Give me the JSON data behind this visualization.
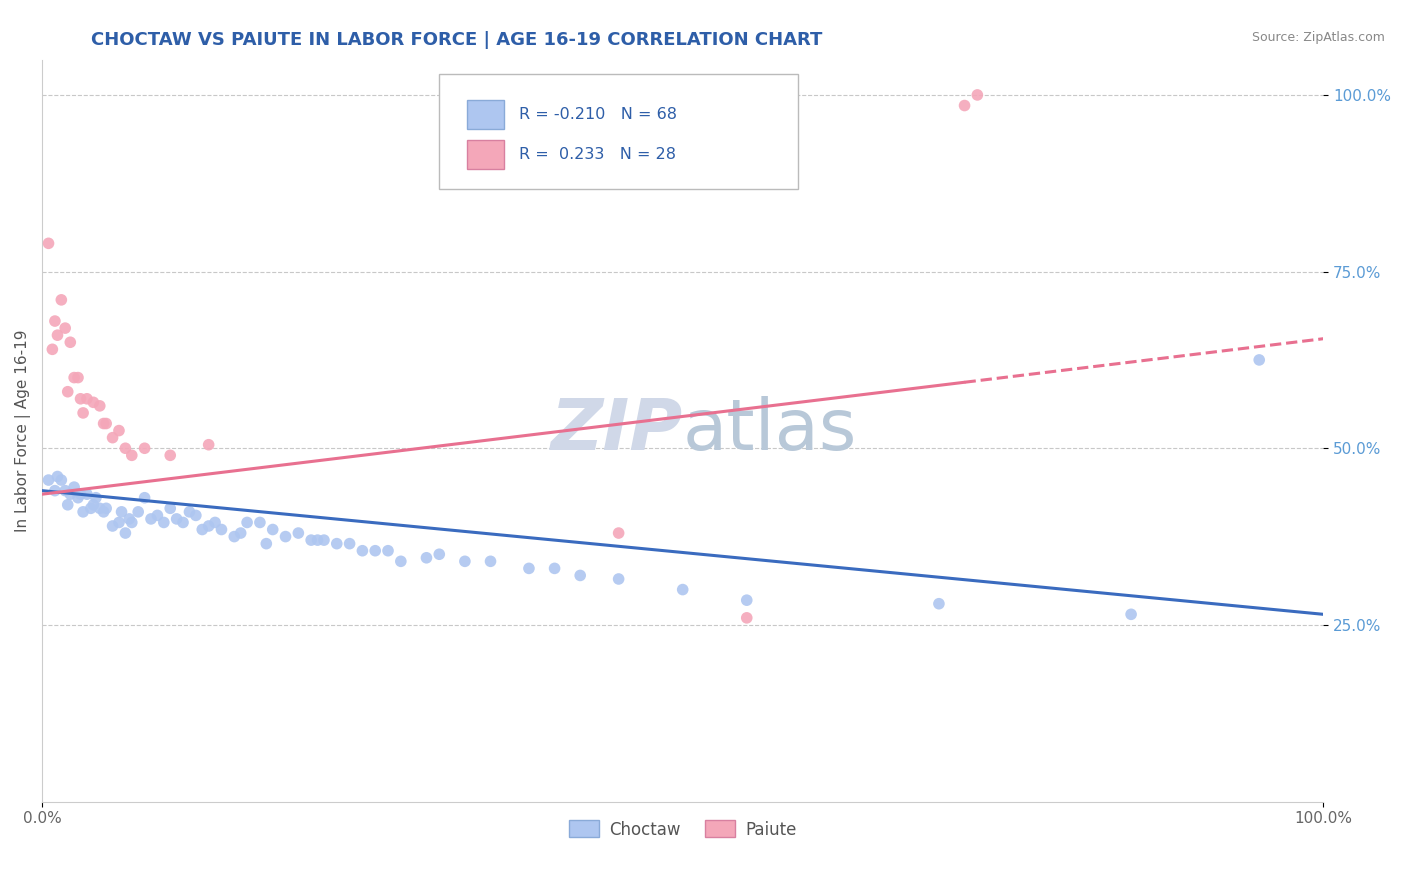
{
  "title": "CHOCTAW VS PAIUTE IN LABOR FORCE | AGE 16-19 CORRELATION CHART",
  "source_text": "Source: ZipAtlas.com",
  "ylabel": "In Labor Force | Age 16-19",
  "choctaw_R": -0.21,
  "choctaw_N": 68,
  "paiute_R": 0.233,
  "paiute_N": 28,
  "choctaw_color": "#aec6f0",
  "paiute_color": "#f4a7b9",
  "choctaw_line_color": "#3a6bbf",
  "paiute_line_color": "#e87090",
  "background_color": "#ffffff",
  "grid_color": "#c8c8c8",
  "title_color": "#2e5ea8",
  "legend_color": "#2e5ea8",
  "tick_color": "#5b9bd5",
  "watermark_color": "#d0d8e8",
  "xlim": [
    0.0,
    1.0
  ],
  "ylim": [
    0.0,
    1.05
  ],
  "choctaw_x": [
    0.005,
    0.01,
    0.012,
    0.015,
    0.018,
    0.02,
    0.022,
    0.025,
    0.028,
    0.03,
    0.032,
    0.035,
    0.038,
    0.04,
    0.042,
    0.045,
    0.048,
    0.05,
    0.055,
    0.06,
    0.062,
    0.065,
    0.068,
    0.07,
    0.075,
    0.08,
    0.085,
    0.09,
    0.095,
    0.1,
    0.105,
    0.11,
    0.115,
    0.12,
    0.125,
    0.13,
    0.135,
    0.14,
    0.15,
    0.155,
    0.16,
    0.17,
    0.175,
    0.18,
    0.19,
    0.2,
    0.21,
    0.215,
    0.22,
    0.23,
    0.24,
    0.25,
    0.26,
    0.27,
    0.28,
    0.3,
    0.31,
    0.33,
    0.35,
    0.38,
    0.4,
    0.42,
    0.45,
    0.5,
    0.55,
    0.7,
    0.85,
    0.95
  ],
  "choctaw_y": [
    0.455,
    0.44,
    0.46,
    0.455,
    0.44,
    0.42,
    0.435,
    0.445,
    0.43,
    0.435,
    0.41,
    0.435,
    0.415,
    0.42,
    0.43,
    0.415,
    0.41,
    0.415,
    0.39,
    0.395,
    0.41,
    0.38,
    0.4,
    0.395,
    0.41,
    0.43,
    0.4,
    0.405,
    0.395,
    0.415,
    0.4,
    0.395,
    0.41,
    0.405,
    0.385,
    0.39,
    0.395,
    0.385,
    0.375,
    0.38,
    0.395,
    0.395,
    0.365,
    0.385,
    0.375,
    0.38,
    0.37,
    0.37,
    0.37,
    0.365,
    0.365,
    0.355,
    0.355,
    0.355,
    0.34,
    0.345,
    0.35,
    0.34,
    0.34,
    0.33,
    0.33,
    0.32,
    0.315,
    0.3,
    0.285,
    0.28,
    0.265,
    0.625
  ],
  "paiute_x": [
    0.005,
    0.008,
    0.01,
    0.012,
    0.015,
    0.018,
    0.02,
    0.022,
    0.025,
    0.028,
    0.03,
    0.032,
    0.035,
    0.04,
    0.045,
    0.048,
    0.05,
    0.055,
    0.06,
    0.065,
    0.07,
    0.08,
    0.1,
    0.13,
    0.45,
    0.72,
    0.73,
    0.55
  ],
  "paiute_y": [
    0.79,
    0.64,
    0.68,
    0.66,
    0.71,
    0.67,
    0.58,
    0.65,
    0.6,
    0.6,
    0.57,
    0.55,
    0.57,
    0.565,
    0.56,
    0.535,
    0.535,
    0.515,
    0.525,
    0.5,
    0.49,
    0.5,
    0.49,
    0.505,
    0.38,
    0.985,
    1.0,
    0.26
  ],
  "choctaw_reg": [
    0.44,
    0.265
  ],
  "paiute_reg": [
    0.435,
    0.655
  ]
}
